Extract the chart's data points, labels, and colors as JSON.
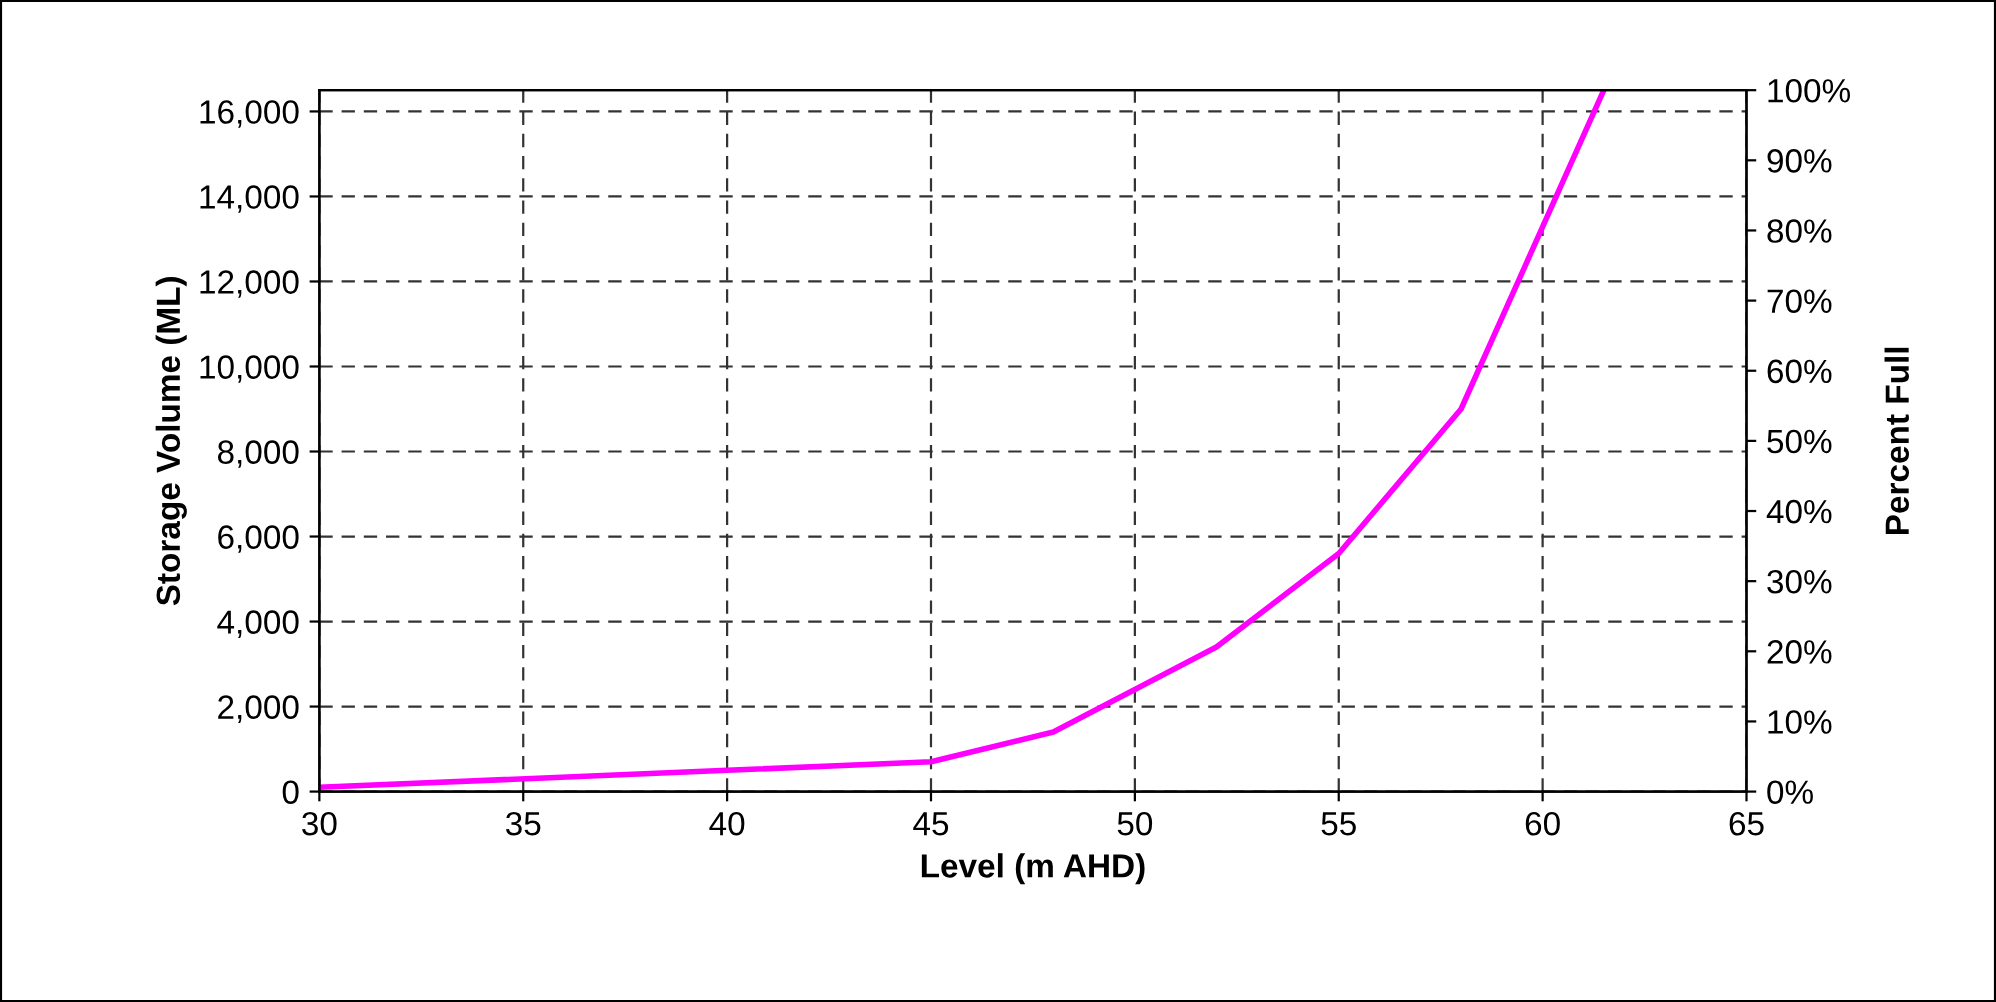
{
  "chart_data": {
    "type": "line",
    "xlabel": "Level (m AHD)",
    "ylabel": "Storage Volume (ML)",
    "y2label": "Percent Full",
    "x": [
      30,
      40,
      45,
      48,
      52,
      55,
      58,
      61.5
    ],
    "series": [
      {
        "color": "#ff00ff",
        "values": [
          100,
          500,
          700,
          1400,
          3400,
          5600,
          9000,
          16500
        ]
      }
    ],
    "xlim": [
      30,
      65
    ],
    "xticks": [
      30,
      35,
      40,
      45,
      50,
      55,
      60,
      65
    ],
    "ylim": [
      0,
      16500
    ],
    "yticks": [
      {
        "value": 0,
        "label": "0"
      },
      {
        "value": 2000,
        "label": "2,000"
      },
      {
        "value": 4000,
        "label": "4,000"
      },
      {
        "value": 6000,
        "label": "6,000"
      },
      {
        "value": 8000,
        "label": "8,000"
      },
      {
        "value": 10000,
        "label": "10,000"
      },
      {
        "value": 12000,
        "label": "12,000"
      },
      {
        "value": 14000,
        "label": "14,000"
      },
      {
        "value": 16000,
        "label": "16,000"
      }
    ],
    "y2lim": [
      0,
      100
    ],
    "y2ticks": [
      {
        "value": 0,
        "label": "0%"
      },
      {
        "value": 10,
        "label": "10%"
      },
      {
        "value": 20,
        "label": "20%"
      },
      {
        "value": 30,
        "label": "30%"
      },
      {
        "value": 40,
        "label": "40%"
      },
      {
        "value": 50,
        "label": "50%"
      },
      {
        "value": 60,
        "label": "60%"
      },
      {
        "value": 70,
        "label": "70%"
      },
      {
        "value": 80,
        "label": "80%"
      },
      {
        "value": 90,
        "label": "90%"
      },
      {
        "value": 100,
        "label": "100%"
      }
    ],
    "grid": true,
    "marker": "none",
    "line_style": "solid"
  }
}
